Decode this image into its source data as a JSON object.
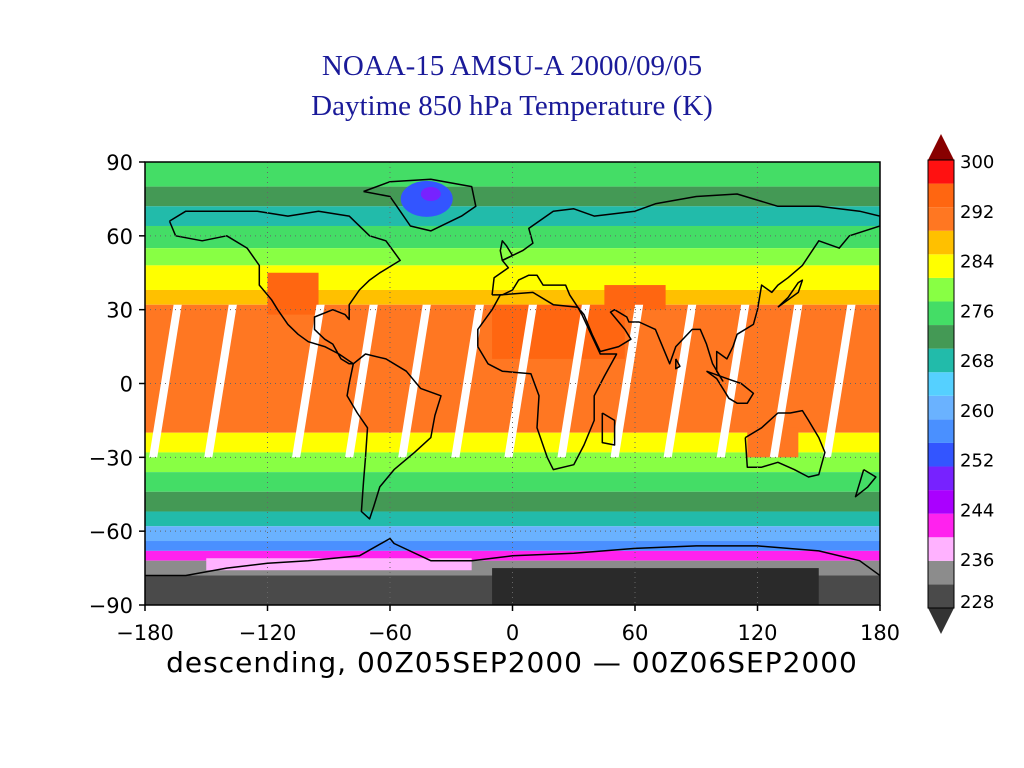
{
  "header": {
    "title_line1": "NOAA-15 AMSU-A 2000/09/05",
    "title_line2": "Daytime 850 hPa Temperature (K)"
  },
  "footer": {
    "subtitle": "descending,  00Z05SEP2000  —  00Z06SEP2000"
  },
  "map": {
    "x_range": [
      -180,
      180
    ],
    "y_range": [
      -90,
      90
    ],
    "x_ticks": [
      -180,
      -120,
      -60,
      0,
      60,
      120,
      180
    ],
    "x_tick_labels": [
      "−180",
      "−120",
      "−60",
      "0",
      "60",
      "120",
      "180"
    ],
    "y_ticks": [
      90,
      60,
      30,
      0,
      -30,
      -60,
      -90
    ],
    "y_tick_labels": [
      "90",
      "60",
      "30",
      "0",
      "−30",
      "−60",
      "−90"
    ],
    "grid": "dotted",
    "projection": "equirectangular"
  },
  "colorbar": {
    "min": 228,
    "max": 300,
    "step": 4,
    "labels": [
      "300",
      "292",
      "284",
      "276",
      "268",
      "260",
      "252",
      "244",
      "236",
      "228"
    ],
    "colors": [
      "#4a4a4a",
      "#8c8c8c",
      "#ffb2ff",
      "#ff22ee",
      "#aa00ff",
      "#7722ff",
      "#3355ff",
      "#4a90ff",
      "#6ab2ff",
      "#55d0ff",
      "#22bbaa",
      "#449955",
      "#44dd66",
      "#88ff44",
      "#ffff00",
      "#ffc000",
      "#ff7722",
      "#ff6611",
      "#ff1111"
    ],
    "max_arrow_color": "#880000",
    "min_arrow_color": "#333333"
  }
}
